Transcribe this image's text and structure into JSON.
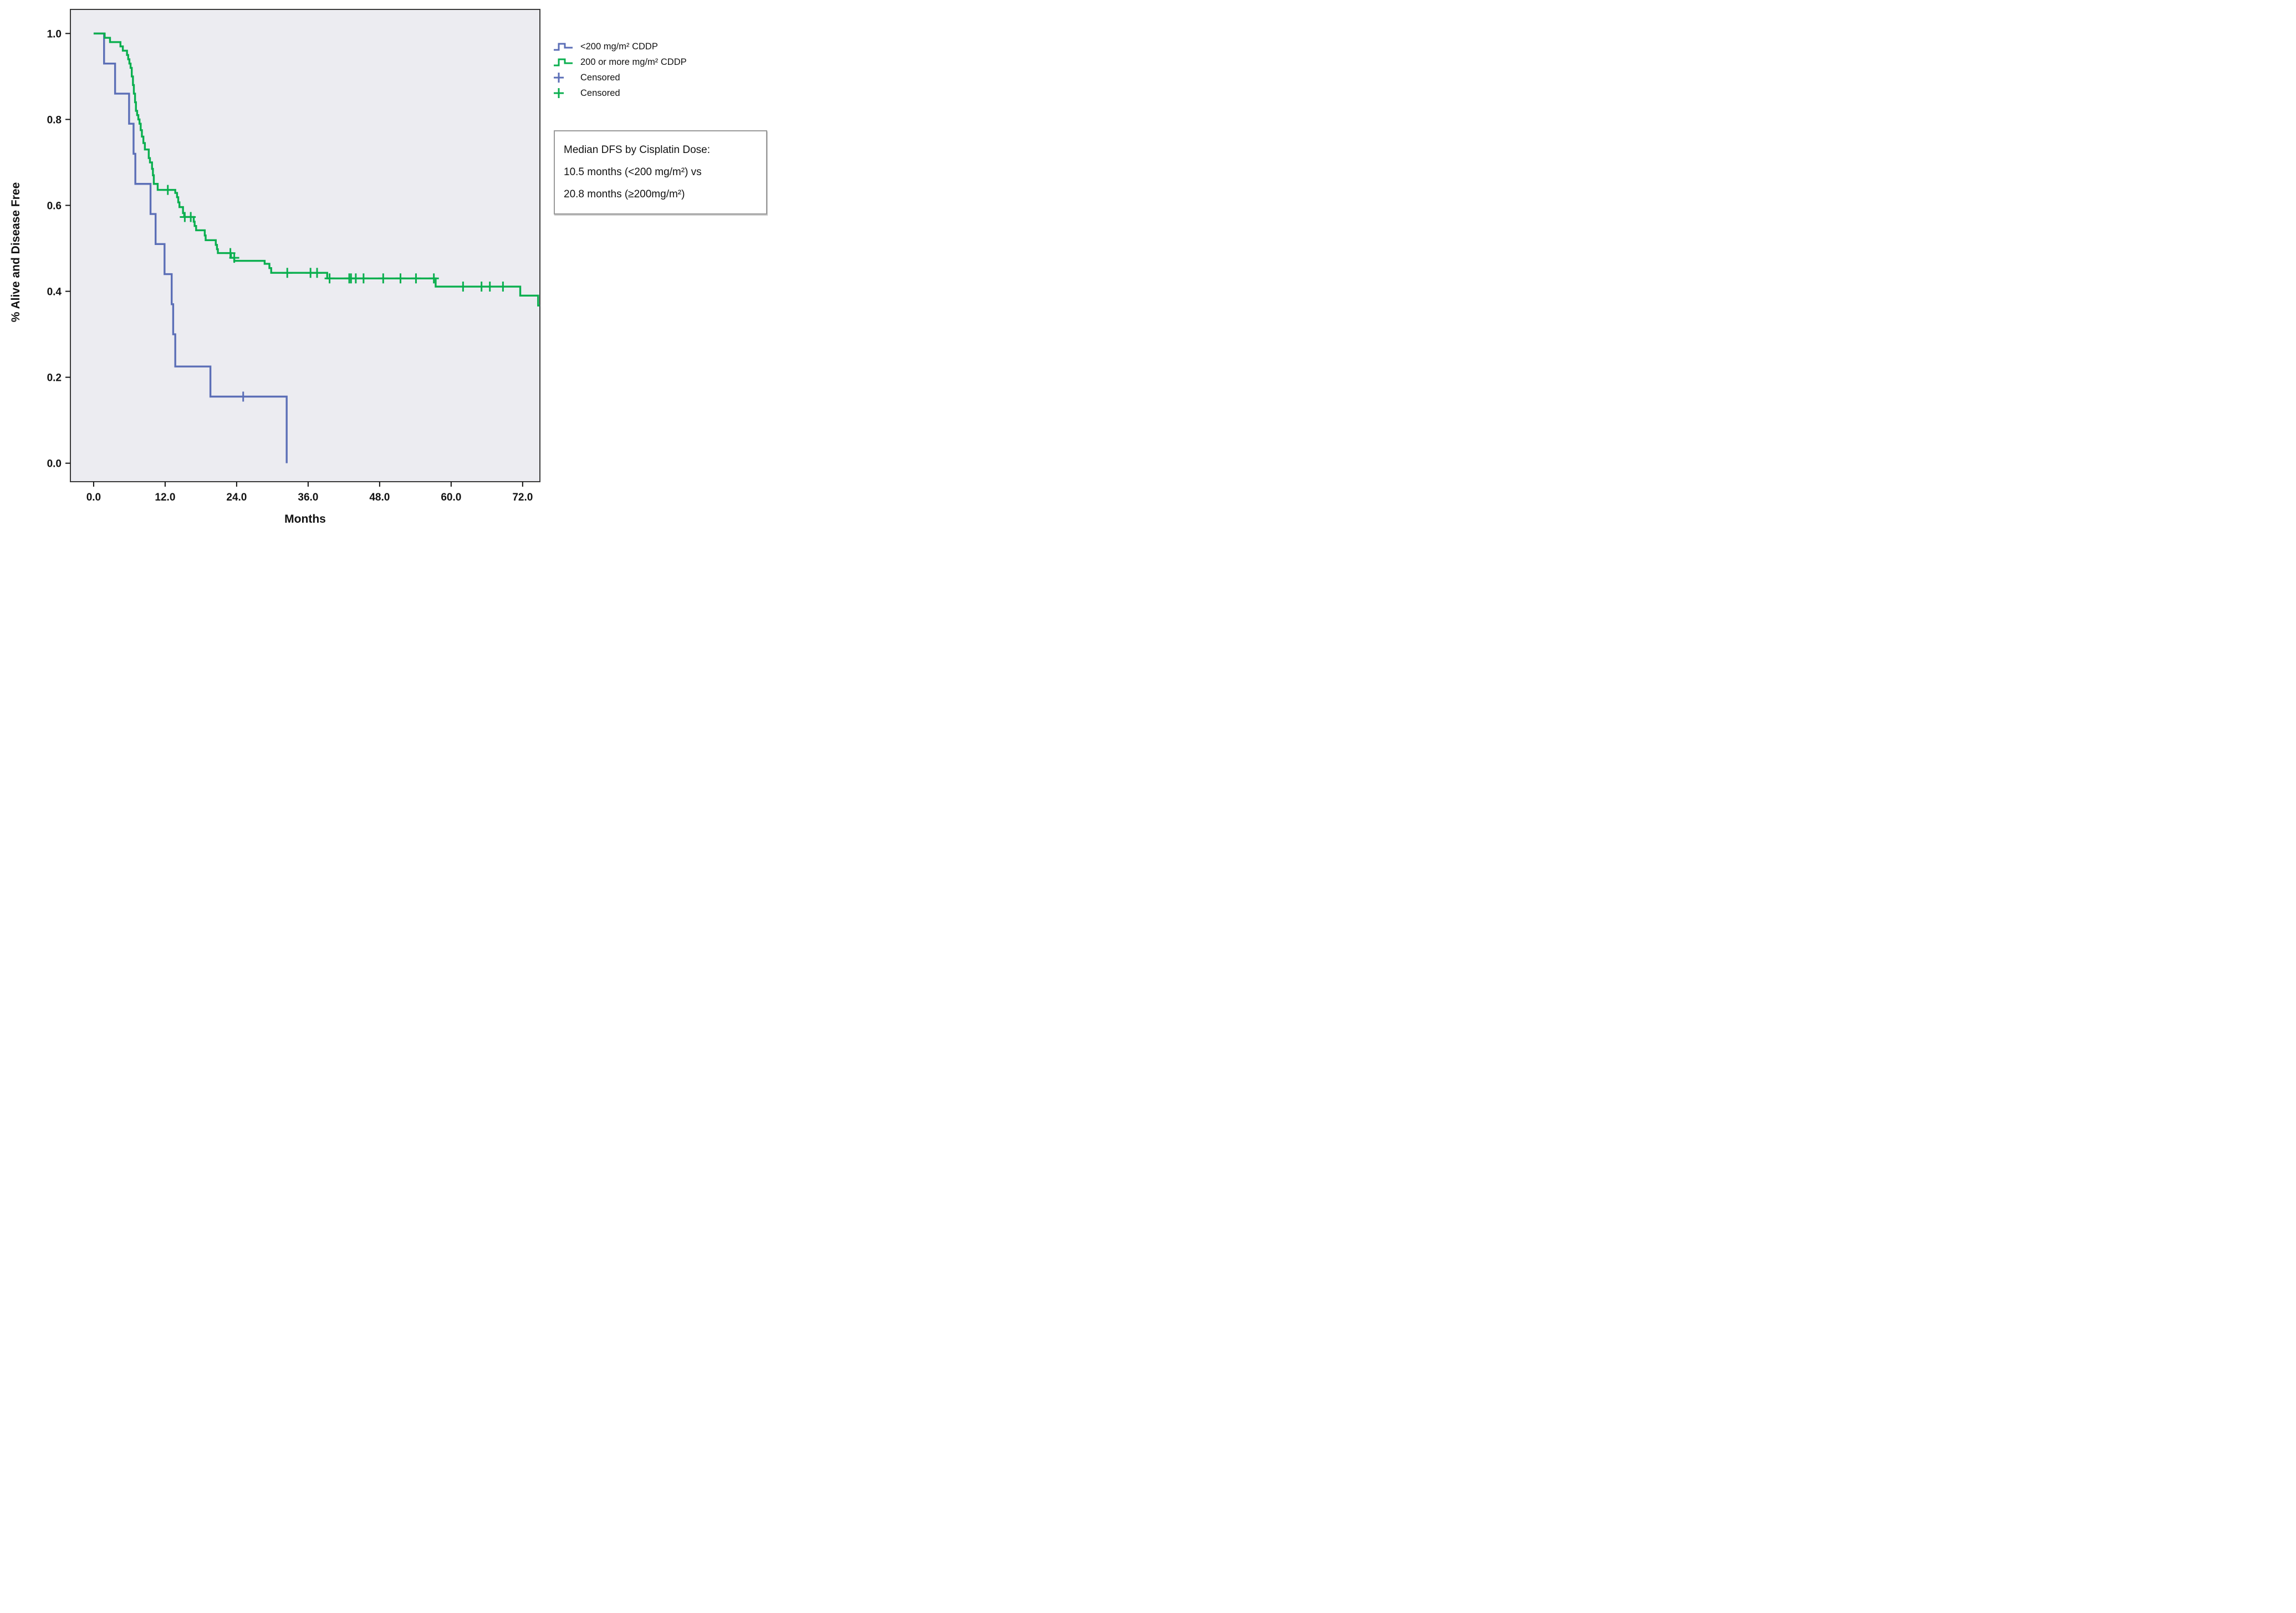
{
  "axes": {
    "x_title": "Months",
    "y_title": "% Alive and Disease Free"
  },
  "legend": {
    "items": [
      {
        "label": "<200 mg/m² CDDP",
        "symbol": "step",
        "color": "#5C6FB7"
      },
      {
        "label": "200 or more mg/m² CDDP",
        "symbol": "step",
        "color": "#0BAF4F"
      },
      {
        "label": "Censored",
        "symbol": "plus",
        "color": "#5C6FB7"
      },
      {
        "label": "Censored",
        "symbol": "plus",
        "color": "#0BAF4F"
      }
    ]
  },
  "annotation": {
    "lines": [
      "Median DFS by Cisplatin Dose:",
      "10.5 months (<200 mg/m²) vs",
      "20.8 months (≥200mg/m²)"
    ]
  },
  "chart_data": {
    "type": "line",
    "subtype": "kaplan-meier-step",
    "title": "",
    "xlabel": "Months",
    "ylabel": "% Alive and Disease Free",
    "x_axis_range": [
      -3.9,
      74.9
    ],
    "y_axis_range": [
      -0.043,
      1.056
    ],
    "grid": false,
    "plot_background": "#ECECF1",
    "frame_color": "#3a3a3a",
    "x_ticks": [
      {
        "value": 0,
        "label": "0.0"
      },
      {
        "value": 12,
        "label": "12.0"
      },
      {
        "value": 24,
        "label": "24.0"
      },
      {
        "value": 36,
        "label": "36.0"
      },
      {
        "value": 48,
        "label": "48.0"
      },
      {
        "value": 60,
        "label": "60.0"
      },
      {
        "value": 72,
        "label": "72.0"
      }
    ],
    "y_ticks": [
      {
        "value": 1.0,
        "label": "1.0"
      },
      {
        "value": 0.8,
        "label": "0.8"
      },
      {
        "value": 0.6,
        "label": "0.6"
      },
      {
        "value": 0.4,
        "label": "0.4"
      },
      {
        "value": 0.2,
        "label": "0.2"
      },
      {
        "value": 0.0,
        "label": "0.0"
      }
    ],
    "series": [
      {
        "name": "<200 mg/m² CDDP",
        "color": "#5C6FB7",
        "end_month": 32.4,
        "steps": [
          [
            0,
            1.0
          ],
          [
            1.75,
            0.93
          ],
          [
            3.6,
            0.86
          ],
          [
            5.95,
            0.79
          ],
          [
            6.7,
            0.72
          ],
          [
            7.0,
            0.65
          ],
          [
            9.55,
            0.58
          ],
          [
            10.4,
            0.51
          ],
          [
            11.9,
            0.44
          ],
          [
            13.1,
            0.37
          ],
          [
            13.35,
            0.3
          ],
          [
            13.7,
            0.225
          ],
          [
            19.6,
            0.155
          ],
          [
            32.4,
            0.0
          ]
        ],
        "censored": [
          [
            25.1,
            0.155
          ]
        ]
      },
      {
        "name": "200 or more mg/m² CDDP",
        "color": "#0BAF4F",
        "end_month": 74.9,
        "steps": [
          [
            0,
            1.0
          ],
          [
            1.85,
            0.99
          ],
          [
            2.75,
            0.98
          ],
          [
            4.5,
            0.97
          ],
          [
            4.9,
            0.96
          ],
          [
            5.6,
            0.95
          ],
          [
            5.8,
            0.94
          ],
          [
            6.0,
            0.93
          ],
          [
            6.2,
            0.92
          ],
          [
            6.4,
            0.9
          ],
          [
            6.6,
            0.88
          ],
          [
            6.75,
            0.86
          ],
          [
            6.95,
            0.84
          ],
          [
            7.1,
            0.82
          ],
          [
            7.3,
            0.81
          ],
          [
            7.5,
            0.8
          ],
          [
            7.7,
            0.79
          ],
          [
            7.9,
            0.775
          ],
          [
            8.1,
            0.76
          ],
          [
            8.35,
            0.745
          ],
          [
            8.6,
            0.73
          ],
          [
            9.25,
            0.71
          ],
          [
            9.45,
            0.7
          ],
          [
            9.8,
            0.685
          ],
          [
            9.95,
            0.67
          ],
          [
            10.1,
            0.65
          ],
          [
            10.75,
            0.636
          ],
          [
            13.7,
            0.629
          ],
          [
            14.0,
            0.619
          ],
          [
            14.2,
            0.607
          ],
          [
            14.4,
            0.596
          ],
          [
            15.0,
            0.582
          ],
          [
            15.2,
            0.573
          ],
          [
            16.8,
            0.562
          ],
          [
            16.95,
            0.552
          ],
          [
            17.2,
            0.542
          ],
          [
            18.65,
            0.53
          ],
          [
            18.8,
            0.519
          ],
          [
            20.5,
            0.508
          ],
          [
            20.7,
            0.498
          ],
          [
            20.85,
            0.489
          ],
          [
            23.05,
            0.478
          ],
          [
            23.6,
            0.471
          ],
          [
            28.7,
            0.464
          ],
          [
            29.5,
            0.454
          ],
          [
            29.8,
            0.443
          ],
          [
            39.2,
            0.43
          ],
          [
            57.4,
            0.411
          ],
          [
            71.6,
            0.39
          ],
          [
            74.6,
            0.367
          ]
        ],
        "censored": [
          [
            12.45,
            0.636
          ],
          [
            15.3,
            0.573
          ],
          [
            16.3,
            0.573
          ],
          [
            22.95,
            0.489
          ],
          [
            23.6,
            0.478
          ],
          [
            32.5,
            0.443
          ],
          [
            36.4,
            0.443
          ],
          [
            37.5,
            0.443
          ],
          [
            39.6,
            0.43
          ],
          [
            42.9,
            0.43
          ],
          [
            43.2,
            0.43
          ],
          [
            44.0,
            0.43
          ],
          [
            45.3,
            0.43
          ],
          [
            48.6,
            0.43
          ],
          [
            51.5,
            0.43
          ],
          [
            54.1,
            0.43
          ],
          [
            57.1,
            0.43
          ],
          [
            62.0,
            0.411
          ],
          [
            65.1,
            0.411
          ],
          [
            66.5,
            0.411
          ],
          [
            68.7,
            0.411
          ]
        ]
      }
    ]
  }
}
